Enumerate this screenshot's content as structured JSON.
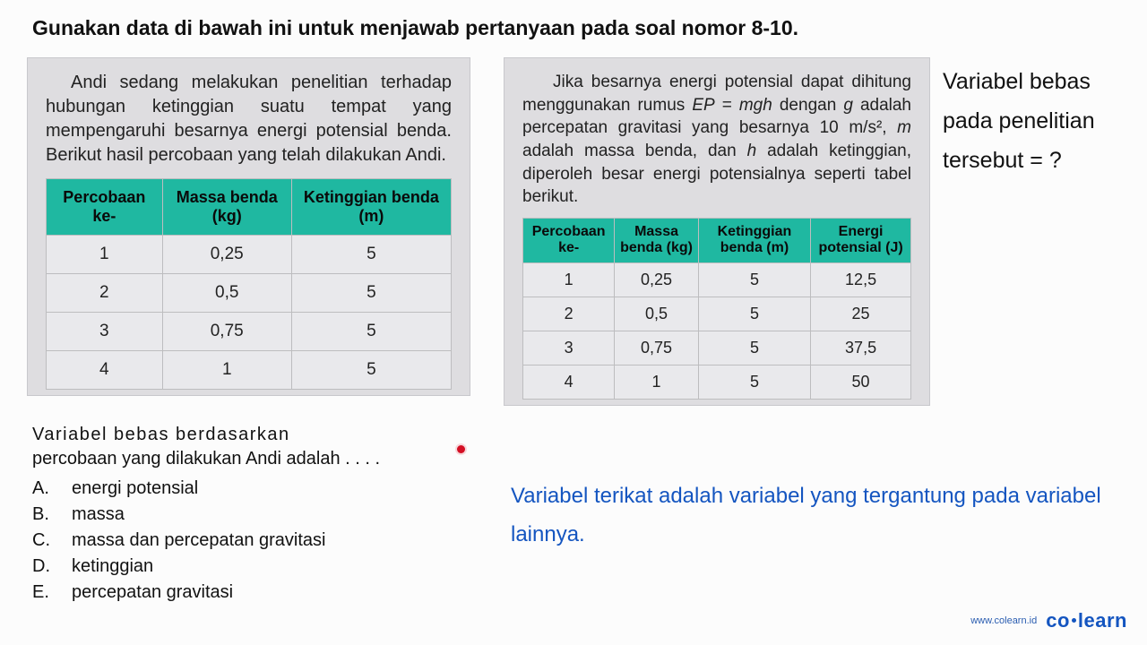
{
  "instruction": "Gunakan data di bawah ini untuk menjawab pertanyaan pada soal nomor 8-10.",
  "left_panel": {
    "paragraph_html": "Andi sedang melakukan penelitian terhadap hubungan ketinggian suatu tempat yang mempengaruhi besarnya energi potensial benda. Berikut hasil percobaan yang telah dilakukan Andi.",
    "table": {
      "header_bg": "#1fb8a1",
      "columns": [
        "Percobaan ke-",
        "Massa benda (kg)",
        "Ketinggian benda (m)"
      ],
      "rows": [
        [
          "1",
          "0,25",
          "5"
        ],
        [
          "2",
          "0,5",
          "5"
        ],
        [
          "3",
          "0,75",
          "5"
        ],
        [
          "4",
          "1",
          "5"
        ]
      ]
    }
  },
  "right_panel": {
    "paragraph_html": "Jika besarnya energi potensial dapat dihitung menggunakan rumus <i>EP</i> = <i>mgh</i> dengan <i>g</i> adalah percepatan gravitasi yang besarnya 10 m/s², <i>m</i> adalah massa benda, dan <i>h</i> adalah ketinggian, diperoleh besar energi potensialnya seperti tabel berikut.",
    "table": {
      "header_bg": "#1fb8a1",
      "columns": [
        "Percobaan ke-",
        "Massa benda (kg)",
        "Ketinggian benda (m)",
        "Energi potensial (J)"
      ],
      "rows": [
        [
          "1",
          "0,25",
          "5",
          "12,5"
        ],
        [
          "2",
          "0,5",
          "5",
          "25"
        ],
        [
          "3",
          "0,75",
          "5",
          "37,5"
        ],
        [
          "4",
          "1",
          "5",
          "50"
        ]
      ]
    }
  },
  "question": {
    "stem_line1": "Variabel bebas berdasarkan",
    "stem_line2": "percobaan yang dilakukan Andi adalah . . . .",
    "options": {
      "A": "energi potensial",
      "B": "massa",
      "C": "massa dan percepatan gravitasi",
      "D": "ketinggian",
      "E": "percepatan gravitasi"
    }
  },
  "side_question": "Variabel bebas pada penelitian tersebut = ?",
  "blue_note": "Variabel terikat adalah variabel yang tergantung pada variabel lainnya.",
  "watermark": {
    "url": "www.colearn.id",
    "brand_left": "co",
    "brand_right": "learn"
  },
  "colors": {
    "text": "#111111",
    "blue": "#1455c0",
    "panel_bg": "#dedde0",
    "table_header": "#1fb8a1",
    "red_dot": "#d40f24"
  }
}
